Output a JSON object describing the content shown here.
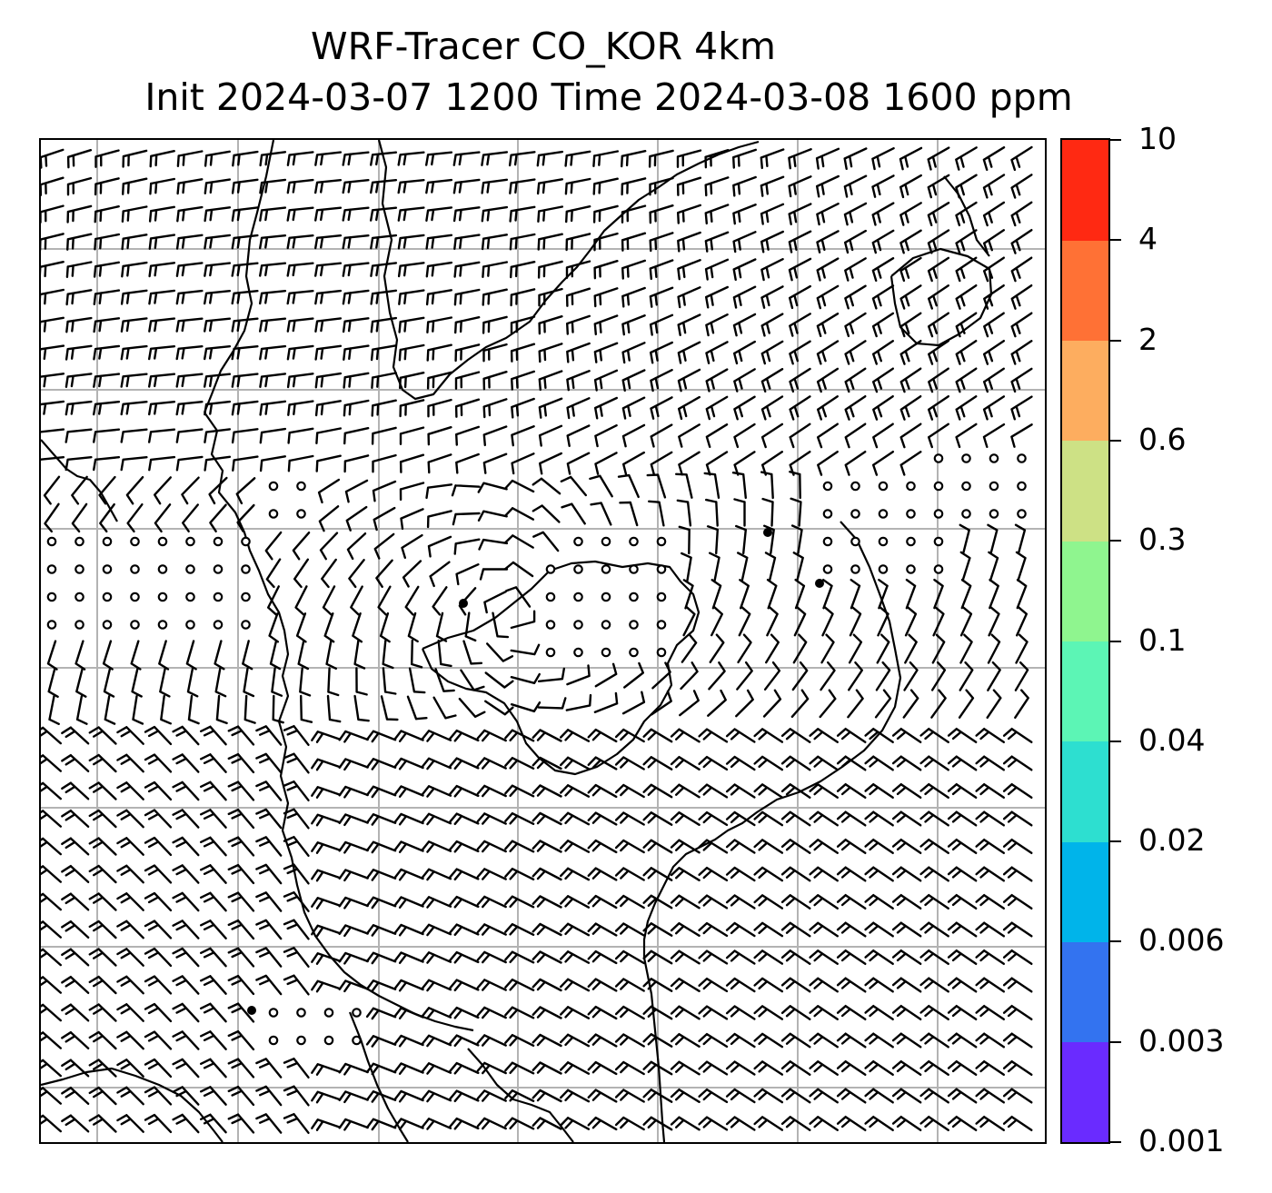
{
  "title": {
    "line1": "WRF-Tracer CO_KOR 4km",
    "line2": "Init 2024-03-07 1200 Time 2024-03-08 1600 ppm"
  },
  "colorbar": {
    "levels": [
      "0.001",
      "0.003",
      "0.006",
      "0.02",
      "0.04",
      "0.1",
      "0.3",
      "0.6",
      "2",
      "4",
      "10"
    ],
    "colors": [
      "#6a2bff",
      "#3373f0",
      "#00b4ea",
      "#2ddfd0",
      "#5cf5b5",
      "#8ff58f",
      "#cde185",
      "#fdad5f",
      "#ff7135",
      "#ff2912"
    ]
  },
  "map": {
    "background": "#ffffff",
    "gridline_color": "#b3b3b3",
    "coastline_color": "#000000",
    "barb_color": "#000000",
    "symbols": [
      "wind-barb",
      "calm-circle",
      "station-dot"
    ]
  }
}
